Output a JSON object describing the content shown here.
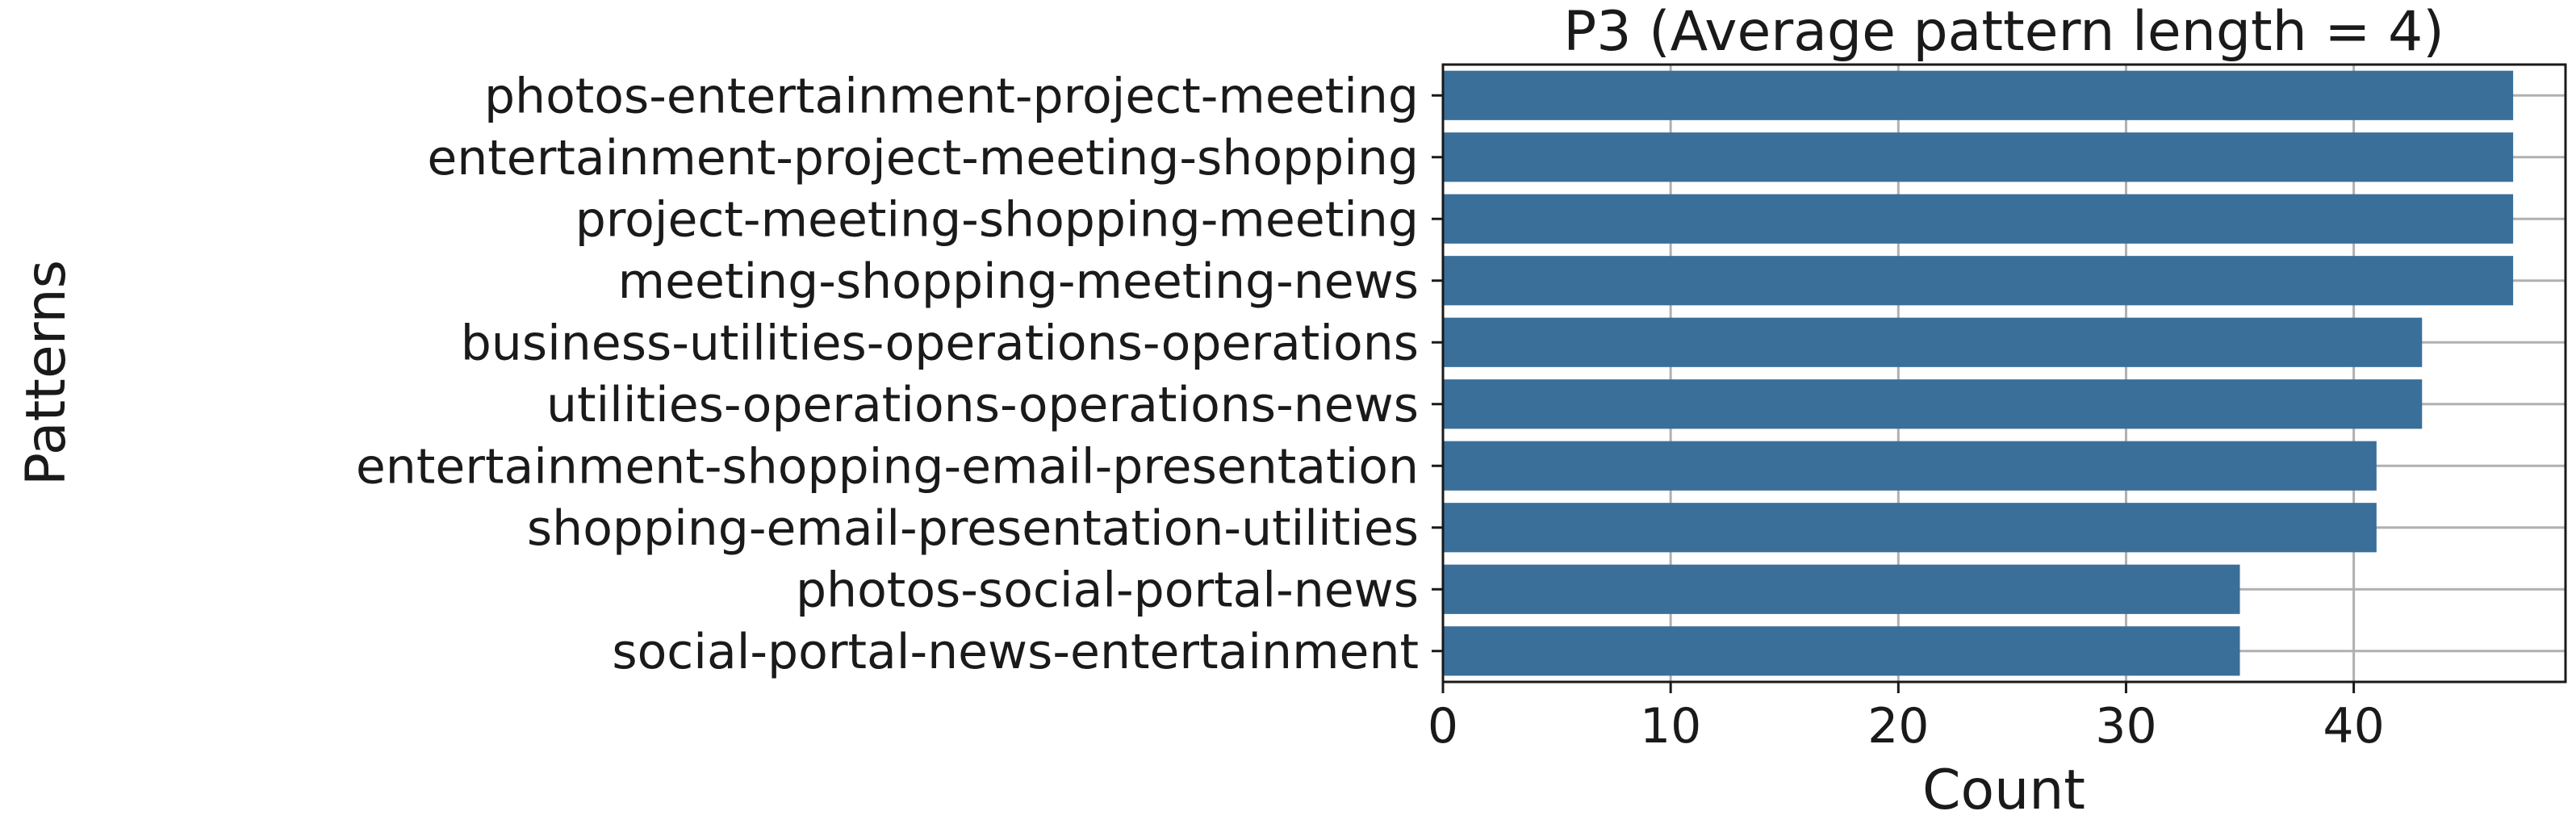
{
  "chart_data": {
    "type": "bar",
    "orientation": "horizontal",
    "title": "P3 (Average pattern length = 4)",
    "xlabel": "Count",
    "ylabel": "Patterns",
    "categories": [
      "photos-entertainment-project-meeting",
      "entertainment-project-meeting-shopping",
      "project-meeting-shopping-meeting",
      "meeting-shopping-meeting-news",
      "business-utilities-operations-operations",
      "utilities-operations-operations-news",
      "entertainment-shopping-email-presentation",
      "shopping-email-presentation-utilities",
      "photos-social-portal-news",
      "social-portal-news-entertainment"
    ],
    "values": [
      47,
      47,
      47,
      47,
      43,
      43,
      41,
      41,
      35,
      35
    ],
    "xlim": [
      0,
      49.3
    ],
    "xticks": [
      "0",
      "10",
      "20",
      "30",
      "40"
    ],
    "grid": true,
    "bar_color": "#3a6f99"
  }
}
